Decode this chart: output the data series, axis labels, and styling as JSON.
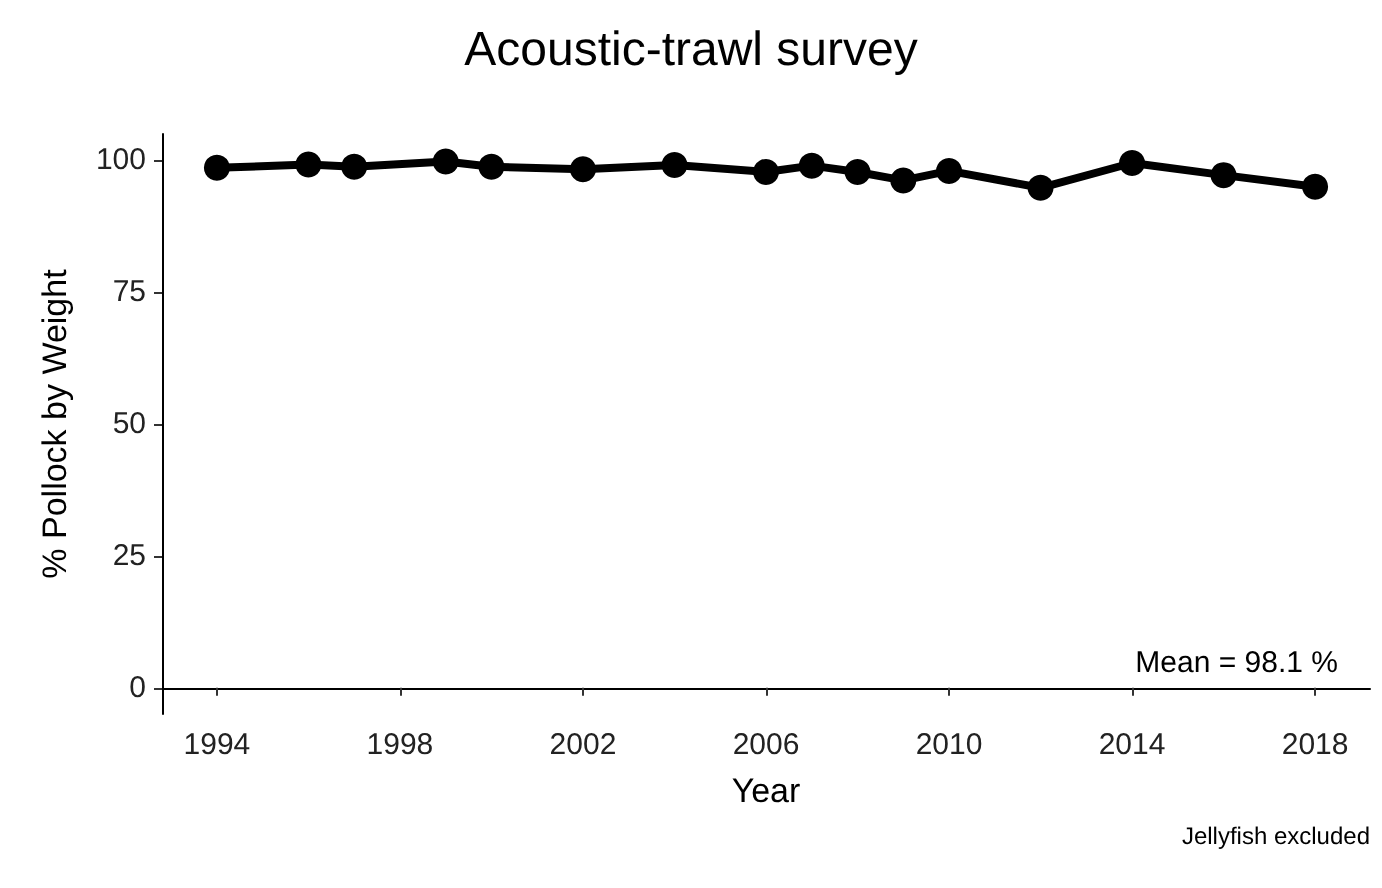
{
  "chart_data": {
    "type": "line",
    "title": "Acoustic-trawl survey",
    "xlabel": "Year",
    "ylabel": "% Pollock by Weight",
    "x": [
      1994,
      1996,
      1997,
      1999,
      2000,
      2002,
      2004,
      2006,
      2007,
      2008,
      2009,
      2010,
      2012,
      2014,
      2016,
      2018
    ],
    "series": [
      {
        "color": "#000000",
        "values": [
          98.6,
          99.2,
          98.8,
          99.8,
          98.8,
          98.3,
          99.1,
          97.8,
          99.0,
          97.8,
          96.2,
          98.0,
          94.8,
          99.5,
          97.2,
          95.0
        ]
      }
    ],
    "xlim": [
      1992.8,
      2019.2
    ],
    "xticks": [
      1994,
      1998,
      2002,
      2006,
      2010,
      2014,
      2018
    ],
    "ylim": [
      -5,
      105
    ],
    "yticks": [
      0,
      25,
      50,
      75,
      100
    ],
    "annotations": [
      "Mean = 98.1 %",
      "Jellyfish excluded"
    ],
    "grid": false,
    "marker": "circle",
    "line_style": "solid"
  }
}
